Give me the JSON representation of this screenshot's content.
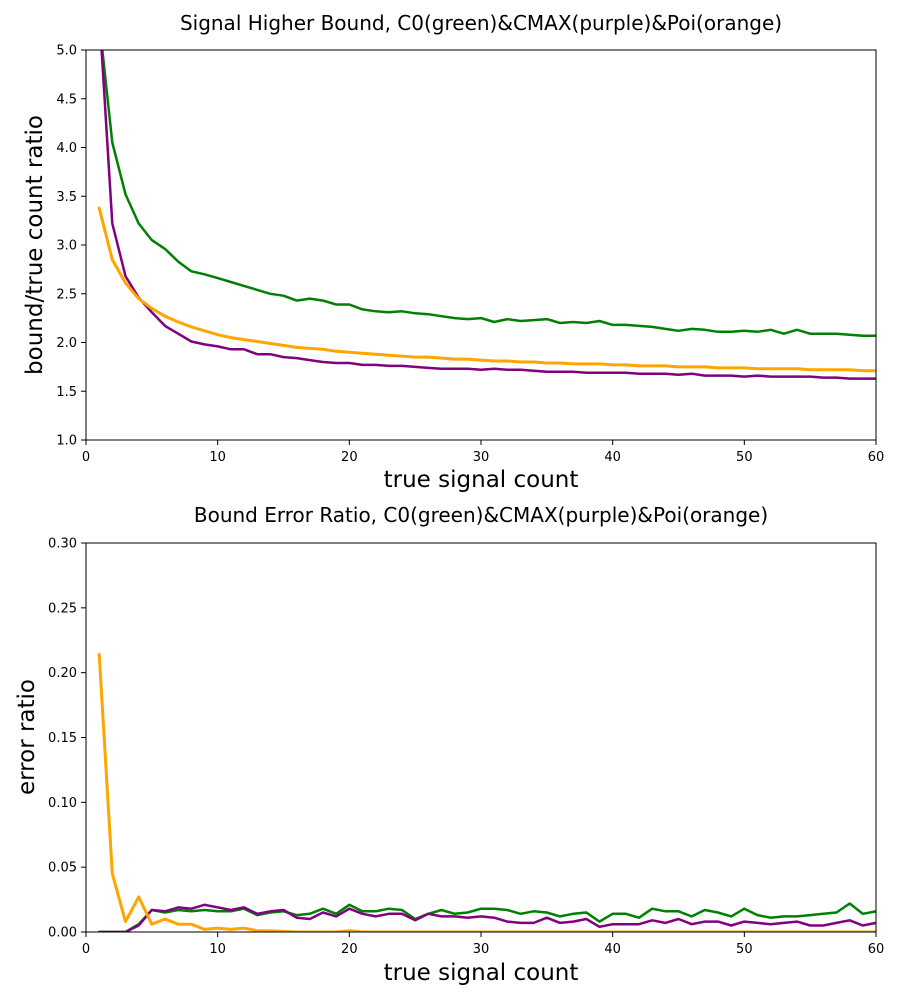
{
  "chart_data": [
    {
      "type": "line",
      "title": "Signal Higher Bound, C0(green)&CMAX(purple)&Poi(orange)",
      "xlabel": "true signal count",
      "ylabel": "bound/true count ratio",
      "xlim": [
        0,
        60
      ],
      "ylim": [
        1.0,
        5.0
      ],
      "xticks": [
        0,
        10,
        20,
        30,
        40,
        50,
        60
      ],
      "yticks": [
        1.0,
        1.5,
        2.0,
        2.5,
        3.0,
        3.5,
        4.0,
        4.5,
        5.0
      ],
      "ytick_decimals": 1,
      "grid": false,
      "x": [
        1,
        2,
        3,
        4,
        5,
        6,
        7,
        8,
        9,
        10,
        11,
        12,
        13,
        14,
        15,
        16,
        17,
        18,
        19,
        20,
        21,
        22,
        23,
        24,
        25,
        26,
        27,
        28,
        29,
        30,
        31,
        32,
        33,
        34,
        35,
        36,
        37,
        38,
        39,
        40,
        41,
        42,
        43,
        44,
        45,
        46,
        47,
        48,
        49,
        50,
        51,
        52,
        53,
        54,
        55,
        56,
        57,
        58,
        59,
        60
      ],
      "series": [
        {
          "color": "#008000",
          "values": [
            5.3,
            4.05,
            3.52,
            3.22,
            3.05,
            2.96,
            2.83,
            2.73,
            2.7,
            2.66,
            2.62,
            2.58,
            2.54,
            2.5,
            2.48,
            2.43,
            2.45,
            2.43,
            2.39,
            2.39,
            2.34,
            2.32,
            2.31,
            2.32,
            2.3,
            2.29,
            2.27,
            2.25,
            2.24,
            2.25,
            2.21,
            2.24,
            2.22,
            2.23,
            2.24,
            2.2,
            2.21,
            2.2,
            2.22,
            2.18,
            2.18,
            2.17,
            2.16,
            2.14,
            2.12,
            2.14,
            2.13,
            2.11,
            2.11,
            2.12,
            2.11,
            2.13,
            2.09,
            2.13,
            2.09,
            2.09,
            2.09,
            2.08,
            2.07,
            2.07
          ]
        },
        {
          "color": "#800080",
          "values": [
            5.4,
            3.22,
            2.68,
            2.46,
            2.31,
            2.17,
            2.09,
            2.01,
            1.98,
            1.96,
            1.93,
            1.93,
            1.88,
            1.88,
            1.85,
            1.84,
            1.82,
            1.8,
            1.79,
            1.79,
            1.77,
            1.77,
            1.76,
            1.76,
            1.75,
            1.74,
            1.73,
            1.73,
            1.73,
            1.72,
            1.73,
            1.72,
            1.72,
            1.71,
            1.7,
            1.7,
            1.7,
            1.69,
            1.69,
            1.69,
            1.69,
            1.68,
            1.68,
            1.68,
            1.67,
            1.68,
            1.66,
            1.66,
            1.66,
            1.65,
            1.66,
            1.65,
            1.65,
            1.65,
            1.65,
            1.64,
            1.64,
            1.63,
            1.63,
            1.63
          ]
        },
        {
          "color": "#FFA500",
          "values": [
            3.38,
            2.85,
            2.61,
            2.45,
            2.35,
            2.27,
            2.21,
            2.16,
            2.12,
            2.08,
            2.05,
            2.03,
            2.01,
            1.99,
            1.97,
            1.95,
            1.94,
            1.93,
            1.91,
            1.9,
            1.89,
            1.88,
            1.87,
            1.86,
            1.85,
            1.85,
            1.84,
            1.83,
            1.83,
            1.82,
            1.81,
            1.81,
            1.8,
            1.8,
            1.79,
            1.79,
            1.78,
            1.78,
            1.78,
            1.77,
            1.77,
            1.76,
            1.76,
            1.76,
            1.75,
            1.75,
            1.75,
            1.74,
            1.74,
            1.74,
            1.73,
            1.73,
            1.73,
            1.73,
            1.72,
            1.72,
            1.72,
            1.72,
            1.71,
            1.71
          ]
        }
      ]
    },
    {
      "type": "line",
      "title": "Bound Error Ratio, C0(green)&CMAX(purple)&Poi(orange)",
      "xlabel": "true signal count",
      "ylabel": "error ratio",
      "xlim": [
        0,
        60
      ],
      "ylim": [
        0.0,
        0.3
      ],
      "xticks": [
        0,
        10,
        20,
        30,
        40,
        50,
        60
      ],
      "yticks": [
        0.0,
        0.05,
        0.1,
        0.15,
        0.2,
        0.25,
        0.3
      ],
      "ytick_decimals": 2,
      "grid": false,
      "x": [
        1,
        2,
        3,
        4,
        5,
        6,
        7,
        8,
        9,
        10,
        11,
        12,
        13,
        14,
        15,
        16,
        17,
        18,
        19,
        20,
        21,
        22,
        23,
        24,
        25,
        26,
        27,
        28,
        29,
        30,
        31,
        32,
        33,
        34,
        35,
        36,
        37,
        38,
        39,
        40,
        41,
        42,
        43,
        44,
        45,
        46,
        47,
        48,
        49,
        50,
        51,
        52,
        53,
        54,
        55,
        56,
        57,
        58,
        59,
        60
      ],
      "series": [
        {
          "color": "#008000",
          "values": [
            0,
            0,
            0,
            0.006,
            0.017,
            0.015,
            0.017,
            0.016,
            0.017,
            0.016,
            0.016,
            0.018,
            0.013,
            0.015,
            0.016,
            0.013,
            0.014,
            0.018,
            0.014,
            0.021,
            0.016,
            0.016,
            0.018,
            0.017,
            0.01,
            0.014,
            0.017,
            0.014,
            0.015,
            0.018,
            0.018,
            0.017,
            0.014,
            0.016,
            0.015,
            0.012,
            0.014,
            0.015,
            0.008,
            0.014,
            0.014,
            0.011,
            0.018,
            0.016,
            0.016,
            0.012,
            0.017,
            0.015,
            0.012,
            0.018,
            0.013,
            0.011,
            0.012,
            0.012,
            0.013,
            0.014,
            0.015,
            0.022,
            0.014,
            0.016
          ]
        },
        {
          "color": "#800080",
          "values": [
            0,
            0,
            0,
            0.005,
            0.017,
            0.016,
            0.019,
            0.018,
            0.021,
            0.019,
            0.017,
            0.019,
            0.014,
            0.016,
            0.017,
            0.011,
            0.01,
            0.015,
            0.012,
            0.018,
            0.014,
            0.012,
            0.014,
            0.014,
            0.009,
            0.014,
            0.012,
            0.012,
            0.011,
            0.012,
            0.011,
            0.008,
            0.007,
            0.007,
            0.011,
            0.007,
            0.008,
            0.01,
            0.004,
            0.006,
            0.006,
            0.006,
            0.009,
            0.007,
            0.01,
            0.006,
            0.008,
            0.008,
            0.005,
            0.008,
            0.007,
            0.006,
            0.007,
            0.008,
            0.005,
            0.005,
            0.007,
            0.009,
            0.005,
            0.007
          ]
        },
        {
          "color": "#FFA500",
          "values": [
            0.214,
            0.045,
            0.008,
            0.027,
            0.006,
            0.01,
            0.006,
            0.006,
            0.002,
            0.003,
            0.002,
            0.003,
            0.001,
            0.001,
            0.0005,
            0,
            0,
            0,
            0,
            0.001,
            0,
            0,
            0,
            0,
            0,
            0,
            0,
            0,
            0,
            0,
            0,
            0,
            0,
            0,
            0,
            0,
            0,
            0,
            0,
            0,
            0,
            0,
            0,
            0,
            0,
            0,
            0,
            0,
            0,
            0,
            0,
            0,
            0,
            0,
            0,
            0,
            0,
            0,
            0,
            0
          ]
        }
      ]
    }
  ]
}
